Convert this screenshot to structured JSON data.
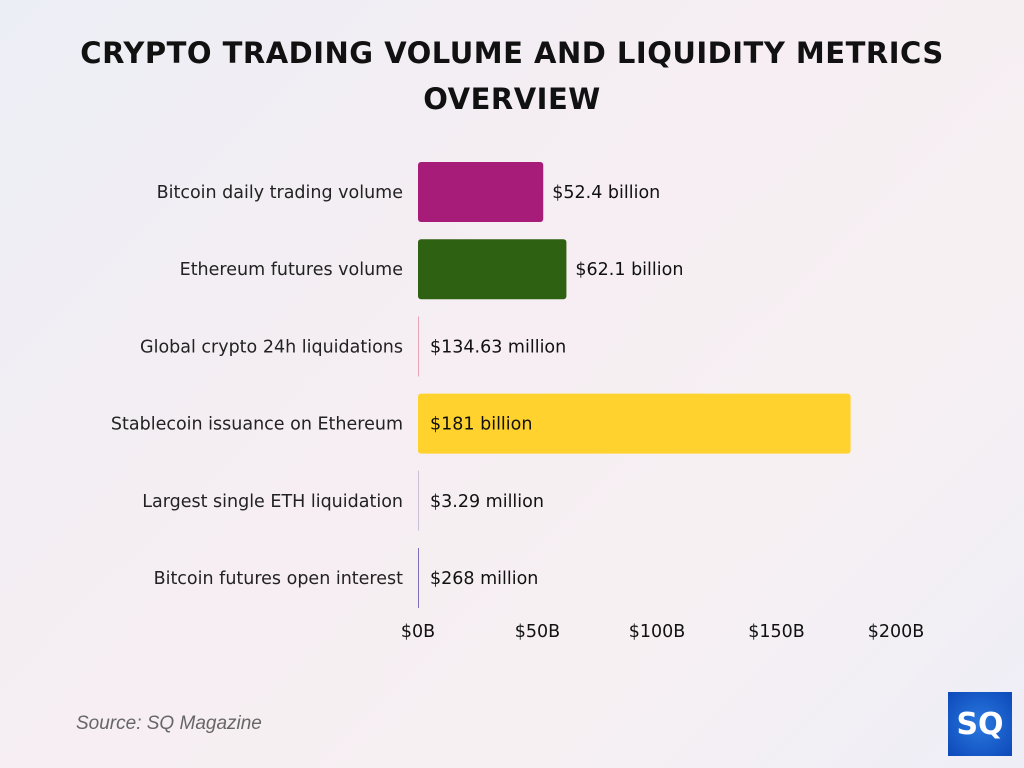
{
  "chart_data": {
    "type": "bar",
    "orientation": "horizontal",
    "title": "CRYPTO TRADING VOLUME AND LIQUIDITY METRICS OVERVIEW",
    "categories": [
      "Bitcoin daily trading volume",
      "Ethereum futures volume",
      "Global crypto 24h liquidations",
      "Stablecoin issuance on Ethereum",
      "Largest single ETH liquidation",
      "Bitcoin futures open interest"
    ],
    "values_billions": [
      52.4,
      62.1,
      0.13463,
      181,
      0.00329,
      0.268
    ],
    "data_labels": [
      "$52.4 billion",
      "$62.1 billion",
      "$134.63 million",
      "$181 billion",
      "$3.29 million",
      "$268 million"
    ],
    "colors": [
      "#a71b79",
      "#2f6113",
      "#e8a6b8",
      "#ffd22e",
      "#c9c0d8",
      "#7e70b8"
    ],
    "xlim": [
      0,
      200
    ],
    "xticks": [
      "$0B",
      "$50B",
      "$100B",
      "$150B",
      "$200B"
    ],
    "xtick_values": [
      0,
      50,
      100,
      150,
      200
    ],
    "grid": false,
    "legend": "none"
  },
  "source": "Source: SQ Magazine",
  "logo": "SQ"
}
